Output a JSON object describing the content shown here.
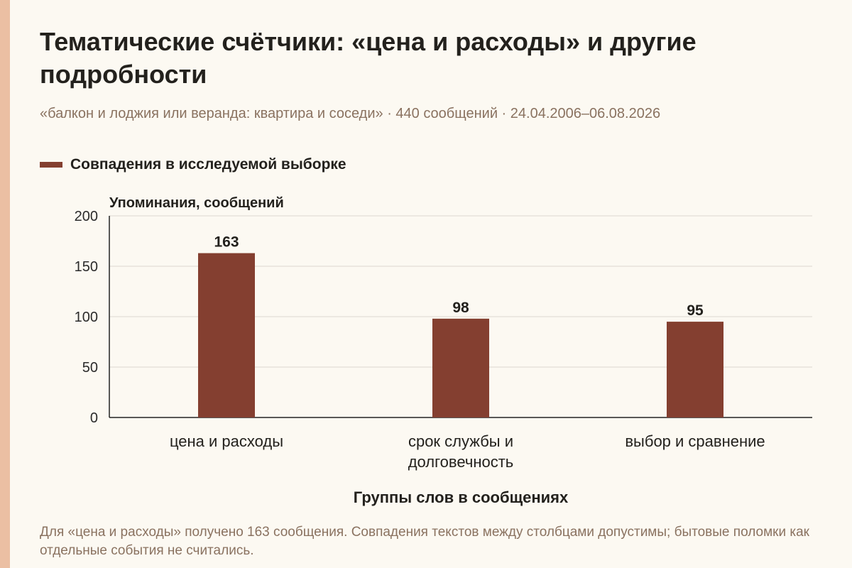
{
  "header": {
    "title": "Тематические счётчики: «цена и расходы» и другие подробности",
    "subtitle": "«балкон и лоджия или веранда: квартира и соседи» · 440 сообщений · 24.04.2006–06.08.2026"
  },
  "legend": {
    "label": "Совпадения в исследуемой выборке"
  },
  "footnote": "Для «цена и расходы» получено 163 сообщения. Совпадения текстов между столбцами допустимы; бытовые поломки как отдельные события не считались.",
  "colors": {
    "bar": "#843f30",
    "accent_strip": "#ebbfa3",
    "gridline": "#dcd8d0",
    "axis": "#222222",
    "muted_text": "#8a7260"
  },
  "chart_data": {
    "type": "bar",
    "categories": [
      [
        "цена и расходы"
      ],
      [
        "срок службы и",
        "долговечность"
      ],
      [
        "выбор и сравнение"
      ]
    ],
    "series": [
      {
        "name": "Совпадения в исследуемой выборке",
        "values": [
          163,
          98,
          95
        ]
      }
    ],
    "data_labels": [
      "163",
      "98",
      "95"
    ],
    "ylabel": "Упоминания, сообщений",
    "xlabel": "Группы слов в сообщениях",
    "ylim": [
      0,
      200
    ],
    "yticks": [
      0,
      50,
      100,
      150,
      200
    ],
    "grid": true
  }
}
